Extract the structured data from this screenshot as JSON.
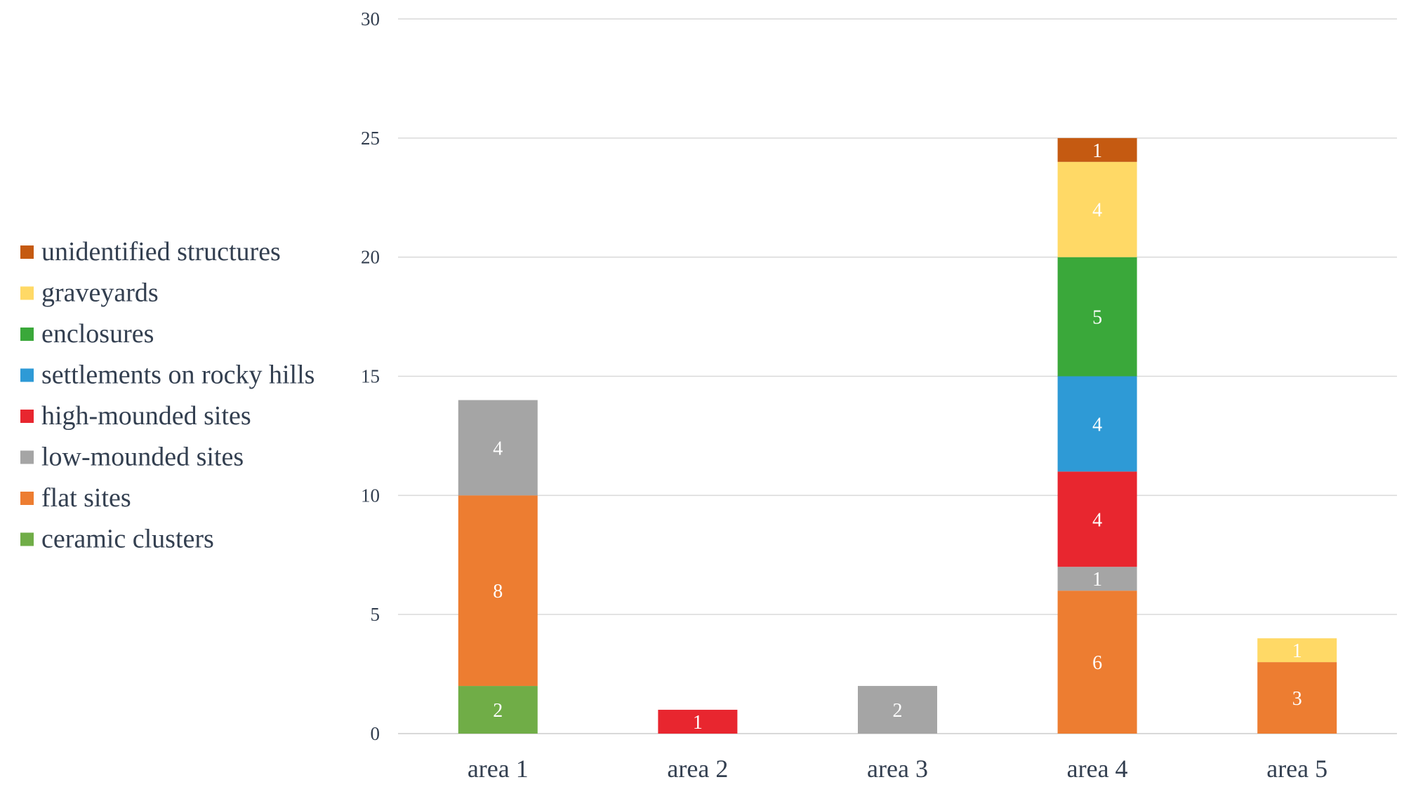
{
  "chart_data": {
    "type": "bar",
    "stacked": true,
    "title": "",
    "xlabel": "",
    "ylabel": "",
    "ylim": [
      0,
      30
    ],
    "yticks": [
      0,
      5,
      10,
      15,
      20,
      25,
      30
    ],
    "grid": true,
    "legend_position": "left",
    "categories": [
      "area 1",
      "area 2",
      "area 3",
      "area 4",
      "area 5"
    ],
    "series": [
      {
        "name": "ceramic clusters",
        "color": "#70ad47",
        "values": [
          2,
          0,
          0,
          0,
          0
        ]
      },
      {
        "name": "flat sites",
        "color": "#ed7d31",
        "values": [
          8,
          0,
          0,
          6,
          3
        ]
      },
      {
        "name": "low-mounded sites",
        "color": "#a5a5a5",
        "values": [
          4,
          0,
          2,
          1,
          0
        ]
      },
      {
        "name": "high-mounded sites",
        "color": "#e8262f",
        "values": [
          0,
          1,
          0,
          4,
          0
        ]
      },
      {
        "name": "settlements on rocky hills",
        "color": "#2e9ad6",
        "values": [
          0,
          0,
          0,
          4,
          0
        ]
      },
      {
        "name": "enclosures",
        "color": "#3aa83a",
        "values": [
          0,
          0,
          0,
          5,
          0
        ]
      },
      {
        "name": "graveyards",
        "color": "#ffd966",
        "values": [
          0,
          0,
          0,
          4,
          1
        ]
      },
      {
        "name": "unidentified structures",
        "color": "#c55a11",
        "values": [
          0,
          0,
          0,
          1,
          0
        ]
      }
    ]
  }
}
